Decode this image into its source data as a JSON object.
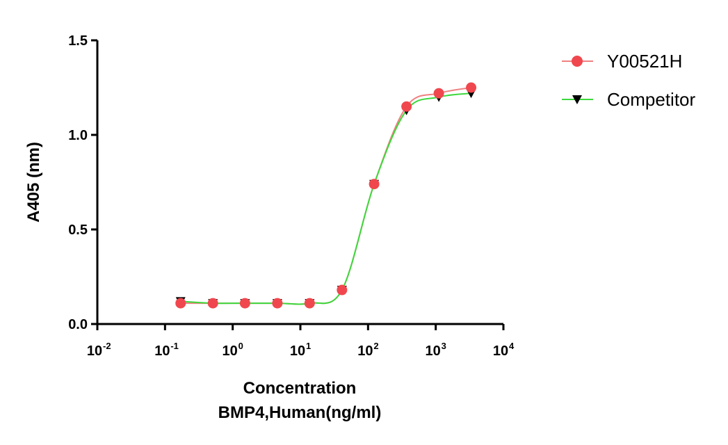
{
  "chart_data": {
    "type": "scatter",
    "x_scale": "log10",
    "xlabel": "Concentration",
    "xlabel_line2": "BMP4,Human(ng/ml)",
    "ylabel": "A405 (nm)",
    "xlim": [
      0.01,
      10000
    ],
    "ylim": [
      0,
      1.5
    ],
    "x_ticks": [
      {
        "base": "10",
        "exp": "-2"
      },
      {
        "base": "10",
        "exp": "-1"
      },
      {
        "base": "10",
        "exp": "0"
      },
      {
        "base": "10",
        "exp": "1"
      },
      {
        "base": "10",
        "exp": "2"
      },
      {
        "base": "10",
        "exp": "3"
      },
      {
        "base": "10",
        "exp": "4"
      }
    ],
    "y_ticks": [
      "0.0",
      "0.5",
      "1.0",
      "1.5"
    ],
    "legend_position": "top-right",
    "series": [
      {
        "name": "Y00521H",
        "marker": "circle",
        "color": "#f0474e",
        "line_color": "#f08080",
        "x": [
          0.17,
          0.51,
          1.52,
          4.57,
          13.7,
          41.2,
          123,
          370,
          1111,
          3333
        ],
        "y": [
          0.11,
          0.11,
          0.11,
          0.11,
          0.11,
          0.18,
          0.74,
          1.15,
          1.22,
          1.25
        ]
      },
      {
        "name": "Competitor",
        "marker": "triangle-down",
        "color": "#000000",
        "line_color": "#3cd83c",
        "x": [
          0.17,
          0.51,
          1.52,
          4.57,
          13.7,
          41.2,
          123,
          370,
          1111,
          3333
        ],
        "y": [
          0.12,
          0.11,
          0.11,
          0.11,
          0.11,
          0.18,
          0.74,
          1.13,
          1.2,
          1.22
        ]
      }
    ]
  }
}
